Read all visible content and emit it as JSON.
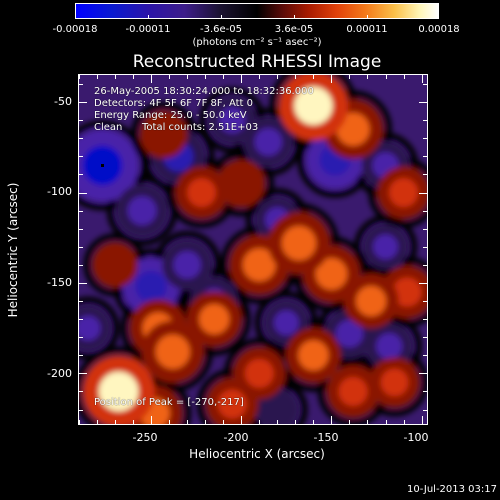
{
  "colorbar": {
    "tick_labels": [
      "-0.00018",
      "-0.00011",
      "-3.6e-05",
      "3.6e-05",
      "0.00011",
      "0.00018"
    ],
    "units": "(photons cm⁻² s⁻¹ asec⁻²)"
  },
  "title": "Reconstructed RHESSI Image",
  "annotations": {
    "time_range": "26-May-2005 18:30:24.000 to 18:32:36.000",
    "detectors": "Detectors: 4F 5F 6F 7F 8F, Att 0",
    "energy_range": "Energy Range: 25.0 - 50.0 keV",
    "method": "Clean",
    "total_counts": "Total counts: 2.51E+03",
    "peak_position": "Position of Peak = [-270,-217]"
  },
  "axes": {
    "xlabel": "Heliocentric X (arcsec)",
    "ylabel": "Heliocentric Y (arcsec)",
    "x_ticks": [
      "-250",
      "-200",
      "-150",
      "-100"
    ],
    "y_ticks": [
      "-50",
      "-100",
      "-150",
      "-200"
    ]
  },
  "date_stamp": "10-Jul-2013 03:17",
  "chart_data": {
    "type": "heatmap",
    "title": "Reconstructed RHESSI Image",
    "xlabel": "Heliocentric X (arcsec)",
    "ylabel": "Heliocentric Y (arcsec)",
    "xlim": [
      -290,
      -97
    ],
    "ylim": [
      -228,
      -35
    ],
    "colorbar_range": [
      -0.00018,
      0.00018
    ],
    "peak_position": [
      -270,
      -217
    ],
    "blobs": [
      {
        "x": -268,
        "y": -210,
        "value": 0.00018
      },
      {
        "x": -238,
        "y": -188,
        "value": 0.00014
      },
      {
        "x": -246,
        "y": -175,
        "value": 0.00012
      },
      {
        "x": -215,
        "y": -170,
        "value": 0.00011
      },
      {
        "x": -190,
        "y": -200,
        "value": 0.0001
      },
      {
        "x": -160,
        "y": -190,
        "value": 0.00011
      },
      {
        "x": -138,
        "y": -210,
        "value": 0.0001
      },
      {
        "x": -205,
        "y": -217,
        "value": 0.0001
      },
      {
        "x": -248,
        "y": -222,
        "value": 0.00011
      },
      {
        "x": -160,
        "y": -52,
        "value": 0.00017
      },
      {
        "x": -138,
        "y": -65,
        "value": 0.00013
      },
      {
        "x": -168,
        "y": -128,
        "value": 0.00014
      },
      {
        "x": -150,
        "y": -145,
        "value": 0.00012
      },
      {
        "x": -128,
        "y": -160,
        "value": 0.00011
      },
      {
        "x": -190,
        "y": -140,
        "value": 0.00013
      },
      {
        "x": -222,
        "y": -100,
        "value": 0.0001
      },
      {
        "x": -200,
        "y": -95,
        "value": 8e-05
      },
      {
        "x": -110,
        "y": -100,
        "value": 0.0001
      },
      {
        "x": -108,
        "y": -155,
        "value": 0.0001
      },
      {
        "x": -115,
        "y": -205,
        "value": 9e-05
      },
      {
        "x": -243,
        "y": -68,
        "value": 8e-05
      },
      {
        "x": -270,
        "y": -140,
        "value": 7e-05
      },
      {
        "x": -277,
        "y": -85,
        "value": -0.00018
      },
      {
        "x": -255,
        "y": -110,
        "value": -0.0001
      },
      {
        "x": -235,
        "y": -80,
        "value": -0.00011
      },
      {
        "x": -205,
        "y": -60,
        "value": -8e-05
      },
      {
        "x": -185,
        "y": -72,
        "value": -9e-05
      },
      {
        "x": -148,
        "y": -82,
        "value": -0.00012
      },
      {
        "x": -120,
        "y": -85,
        "value": -8e-05
      },
      {
        "x": -250,
        "y": -152,
        "value": -0.00012
      },
      {
        "x": -230,
        "y": -140,
        "value": -9e-05
      },
      {
        "x": -215,
        "y": -160,
        "value": -8e-05
      },
      {
        "x": -180,
        "y": -115,
        "value": -7e-05
      },
      {
        "x": -120,
        "y": -130,
        "value": -7e-05
      },
      {
        "x": -140,
        "y": -178,
        "value": -9e-05
      },
      {
        "x": -118,
        "y": -185,
        "value": -8e-05
      },
      {
        "x": -175,
        "y": -172,
        "value": -7e-05
      },
      {
        "x": -285,
        "y": -175,
        "value": -7e-05
      },
      {
        "x": -180,
        "y": -220,
        "value": -6e-05
      }
    ]
  }
}
